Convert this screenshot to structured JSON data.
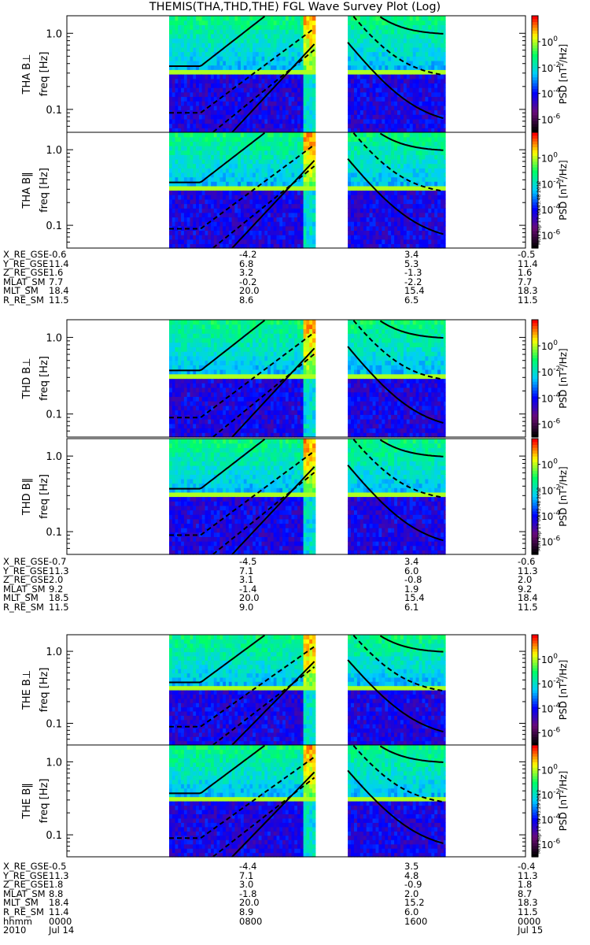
{
  "chart_data": {
    "type": "heatmap",
    "title": "THEMIS(THA,THD,THE) FGL Wave Survey Plot (Log)",
    "panels": [
      {
        "probe": "THA",
        "component": "B⊥",
        "ylabel": "THA B⊥",
        "yunit": "freq [Hz]",
        "colorbar_label": "PSD [nT²/Hz]",
        "stamp": ""
      },
      {
        "probe": "THA",
        "component": "B‖",
        "ylabel": "THA B‖",
        "yunit": "freq [Hz]",
        "colorbar_label": "PSD [nT²/Hz]",
        "stamp": "Mon Sep 17 00:45:48 2012"
      },
      {
        "probe": "THD",
        "component": "B⊥",
        "ylabel": "THD B⊥",
        "yunit": "freq [Hz]",
        "colorbar_label": "PSD [nT²/Hz]",
        "stamp": ""
      },
      {
        "probe": "THD",
        "component": "B‖",
        "ylabel": "THD B‖",
        "yunit": "freq [Hz]",
        "colorbar_label": "PSD [nT²/Hz]",
        "stamp": "Mon Sep 17 00:45:48 2012"
      },
      {
        "probe": "THE",
        "component": "B⊥",
        "ylabel": "THE B⊥",
        "yunit": "freq [Hz]",
        "colorbar_label": "PSD [nT²/Hz]",
        "stamp": ""
      },
      {
        "probe": "THE",
        "component": "B‖",
        "ylabel": "THE B‖",
        "yunit": "freq [Hz]",
        "colorbar_label": "PSD [nT²/Hz]",
        "stamp": "Mon Sep 17 00:45:29 2012"
      }
    ],
    "yaxis": {
      "scale": "log",
      "range_hz": [
        0.05,
        1.7
      ],
      "ticks": [
        {
          "value": 0.1,
          "label": "0.1"
        },
        {
          "value": 1.0,
          "label": "1.0"
        }
      ]
    },
    "colorbar": {
      "scale": "log",
      "range": [
        1e-07,
        100
      ],
      "tick_exponents": [
        "0",
        "-2",
        "-4",
        "-6"
      ],
      "colors": [
        "#000000",
        "#6a0a78",
        "#0000ff",
        "#00ccff",
        "#00ff66",
        "#ffff00",
        "#ff0000"
      ]
    },
    "time_axis": {
      "start_hours": 0,
      "end_hours": 24,
      "data_start_hours": 5.35,
      "gap_hours": [
        13.0,
        14.7
      ],
      "data_end_hours": 19.8
    },
    "ephemeris": [
      {
        "probe": "THA",
        "rows": [
          {
            "label": "X_RE_GSE",
            "values": [
              "-0.6",
              "-4.2",
              "3.4",
              "-0.5"
            ]
          },
          {
            "label": "Y_RE_GSE",
            "values": [
              "11.4",
              "6.8",
              "5.3",
              "11.4"
            ]
          },
          {
            "label": "Z_RE_GSE",
            "values": [
              "1.6",
              "3.2",
              "-1.3",
              "1.6"
            ]
          },
          {
            "label": "MLAT_SM",
            "values": [
              "7.7",
              "-0.2",
              "-2.2",
              "7.7"
            ]
          },
          {
            "label": "MLT_SM",
            "values": [
              "18.4",
              "20.0",
              "15.4",
              "18.3"
            ]
          },
          {
            "label": "R_RE_SM",
            "values": [
              "11.5",
              "8.6",
              "6.5",
              "11.5"
            ]
          }
        ]
      },
      {
        "probe": "THD",
        "rows": [
          {
            "label": "X_RE_GSE",
            "values": [
              "-0.7",
              "-4.5",
              "3.4",
              "-0.6"
            ]
          },
          {
            "label": "Y_RE_GSE",
            "values": [
              "11.3",
              "7.1",
              "6.0",
              "11.3"
            ]
          },
          {
            "label": "Z_RE_GSE",
            "values": [
              "2.0",
              "3.1",
              "-0.8",
              "2.0"
            ]
          },
          {
            "label": "MLAT_SM",
            "values": [
              "9.2",
              "-1.4",
              "1.9",
              "9.2"
            ]
          },
          {
            "label": "MLT_SM",
            "values": [
              "18.5",
              "20.0",
              "15.4",
              "18.4"
            ]
          },
          {
            "label": "R_RE_SM",
            "values": [
              "11.5",
              "9.0",
              "6.1",
              "11.5"
            ]
          }
        ]
      },
      {
        "probe": "THE",
        "rows": [
          {
            "label": "X_RE_GSE",
            "values": [
              "-0.5",
              "-4.4",
              "3.5",
              "-0.4"
            ]
          },
          {
            "label": "Y_RE_GSE",
            "values": [
              "11.3",
              "7.1",
              "4.8",
              "11.3"
            ]
          },
          {
            "label": "Z_RE_GSE",
            "values": [
              "1.8",
              "3.0",
              "-0.9",
              "1.8"
            ]
          },
          {
            "label": "MLAT_SM",
            "values": [
              "8.8",
              "-1.8",
              "2.0",
              "8.7"
            ]
          },
          {
            "label": "MLT_SM",
            "values": [
              "18.4",
              "20.0",
              "15.2",
              "18.3"
            ]
          },
          {
            "label": "R_RE_SM",
            "values": [
              "11.4",
              "8.9",
              "6.0",
              "11.5"
            ]
          },
          {
            "label": "hhmm",
            "values": [
              "0000",
              "0800",
              "1600",
              "0000"
            ]
          },
          {
            "label": "2010",
            "values": [
              "Jul 14",
              "",
              "",
              "Jul 15"
            ]
          }
        ]
      }
    ]
  }
}
